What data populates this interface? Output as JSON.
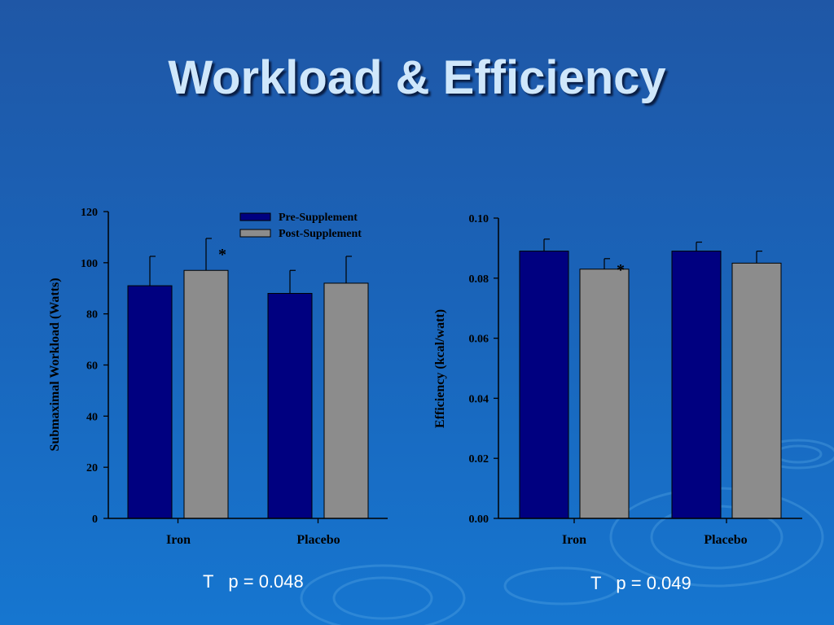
{
  "slide": {
    "title": "Workload & Efficiency"
  },
  "colors": {
    "pre": "#000080",
    "post": "#8c8c8c",
    "axis": "#000000",
    "background": "#1a63b8"
  },
  "chart_data": [
    {
      "type": "bar",
      "categories": [
        "Iron",
        "Placebo"
      ],
      "series": [
        {
          "name": "Pre-Supplement",
          "values": [
            91,
            88
          ],
          "error": [
            11.5,
            9
          ]
        },
        {
          "name": "Post-Supplement",
          "values": [
            97,
            92
          ],
          "error": [
            12.5,
            10.5
          ]
        }
      ],
      "ylabel": "Submaximal Workload (Watts)",
      "ylim": [
        0,
        120
      ],
      "yticks": [
        "0",
        "20",
        "40",
        "60",
        "80",
        "100",
        "120"
      ],
      "legend": "top-right",
      "annotations": [
        {
          "text": "*",
          "category": "Iron",
          "series": "Post-Supplement"
        }
      ],
      "note": {
        "marker": "T",
        "text": "p = 0.048"
      }
    },
    {
      "type": "bar",
      "categories": [
        "Iron",
        "Placebo"
      ],
      "series": [
        {
          "name": "Pre-Supplement",
          "values": [
            0.089,
            0.089
          ],
          "error": [
            0.004,
            0.003
          ]
        },
        {
          "name": "Post-Supplement",
          "values": [
            0.083,
            0.085
          ],
          "error": [
            0.0035,
            0.004
          ]
        }
      ],
      "ylabel": "Efficiency (kcal/watt)",
      "ylim": [
        0,
        0.1
      ],
      "yticks": [
        "0.00",
        "0.02",
        "0.04",
        "0.06",
        "0.08",
        "0.10"
      ],
      "annotations": [
        {
          "text": "*",
          "category": "Iron",
          "series": "Post-Supplement"
        }
      ],
      "note": {
        "marker": "T",
        "text": "p = 0.049"
      }
    }
  ]
}
